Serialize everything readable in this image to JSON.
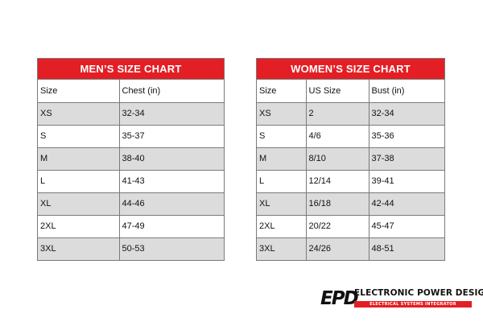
{
  "mens": {
    "title": "MEN’S SIZE CHART",
    "headers": [
      "Size",
      "Chest (in)"
    ],
    "rows": [
      [
        "XS",
        "32-34"
      ],
      [
        "S",
        "35-37"
      ],
      [
        "M",
        "38-40"
      ],
      [
        "L",
        "41-43"
      ],
      [
        "XL",
        "44-46"
      ],
      [
        "2XL",
        "47-49"
      ],
      [
        "3XL",
        "50-53"
      ]
    ]
  },
  "womens": {
    "title": "WOMEN’S SIZE CHART",
    "headers": [
      "Size",
      "US Size",
      "Bust (in)"
    ],
    "rows": [
      [
        "XS",
        "2",
        "32-34"
      ],
      [
        "S",
        "4/6",
        "35-36"
      ],
      [
        "M",
        "8/10",
        "37-38"
      ],
      [
        "L",
        "12/14",
        "39-41"
      ],
      [
        "XL",
        "16/18",
        "42-44"
      ],
      [
        "2XL",
        "20/22",
        "45-47"
      ],
      [
        "3XL",
        "24/26",
        "48-51"
      ]
    ]
  },
  "logo": {
    "mark": "EPD",
    "name": "ELECTRONIC POWER DESIGN",
    "tagline": "ELECTRICAL SYSTEMS INTEGRATOR"
  },
  "colors": {
    "header_red": "#e31e24",
    "stripe_gray": "#dcdcdc"
  }
}
